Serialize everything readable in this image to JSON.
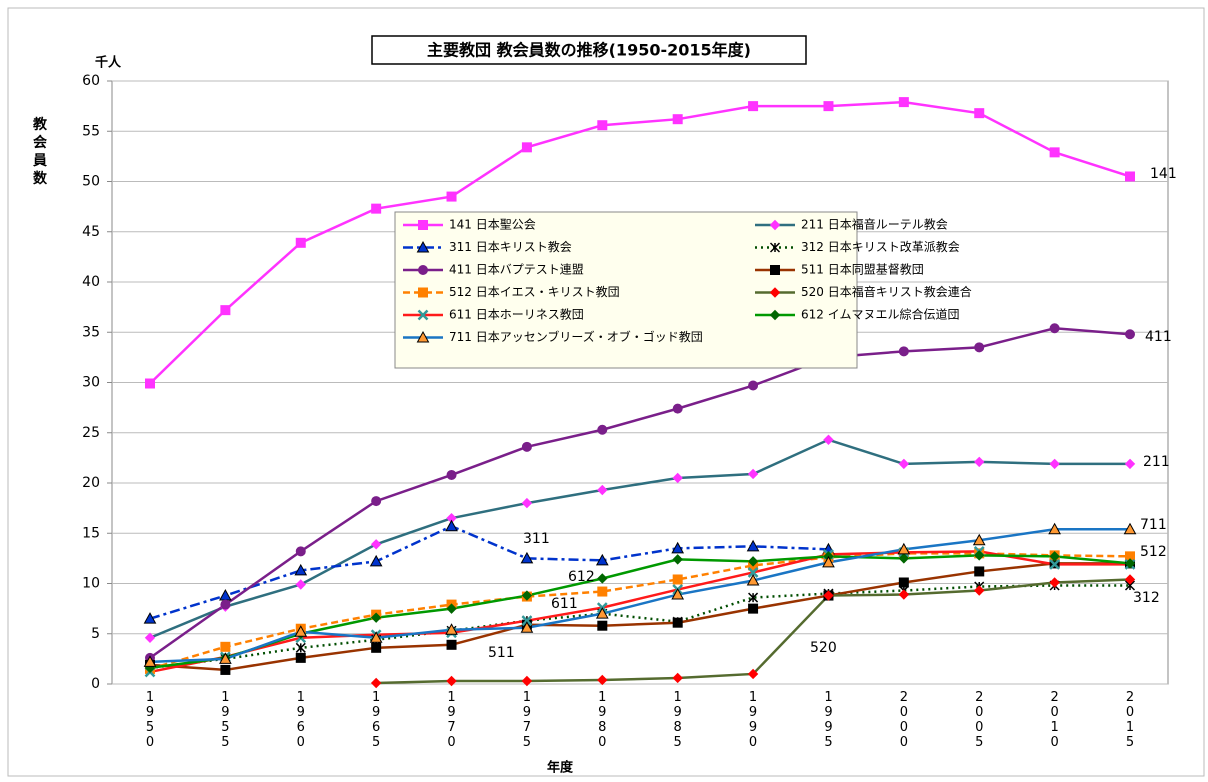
{
  "chart_data": {
    "type": "line",
    "title": "主要教団 教会員数の推移(1950-2015年度)",
    "y_unit": "千人",
    "y_label": "教会員数",
    "x_label": "年度",
    "categories": [
      "1950",
      "1955",
      "1960",
      "1965",
      "1970",
      "1975",
      "1980",
      "1985",
      "1990",
      "1995",
      "2000",
      "2005",
      "2010",
      "2015"
    ],
    "ylim": [
      0,
      60
    ],
    "yticks": [
      0,
      5,
      10,
      15,
      20,
      25,
      30,
      35,
      40,
      45,
      50,
      55,
      60
    ],
    "grid": true,
    "series": [
      {
        "name": "141 日本聖公会",
        "color": "#ff33ff",
        "marker": "square",
        "marker_color": "#ff33ff",
        "dash": "solid",
        "values": [
          29.9,
          37.2,
          43.9,
          47.3,
          48.5,
          53.4,
          55.6,
          56.2,
          57.5,
          57.5,
          57.9,
          56.8,
          52.9,
          50.5
        ]
      },
      {
        "name": "211 日本福音ルーテル教会",
        "color": "#2f6f7f",
        "marker": "diamond",
        "marker_color": "#ff33ff",
        "dash": "solid",
        "values": [
          4.6,
          7.7,
          9.9,
          13.9,
          16.5,
          18.0,
          19.3,
          20.5,
          20.9,
          24.3,
          21.9,
          22.1,
          21.9,
          21.9
        ]
      },
      {
        "name": "311 日本キリスト教会",
        "color": "#0033cc",
        "marker": "triangle",
        "marker_color": "#0033cc",
        "dash": "dashdot",
        "values": [
          6.5,
          8.8,
          11.3,
          12.2,
          15.7,
          12.5,
          12.3,
          13.5,
          13.7,
          13.4,
          null,
          null,
          null,
          null
        ]
      },
      {
        "name": "312 日本キリスト改革派教会",
        "color": "#004d00",
        "marker": "star",
        "marker_color": "#000000",
        "dash": "dot",
        "values": [
          1.6,
          2.5,
          3.6,
          4.4,
          5.3,
          6.3,
          7.0,
          6.2,
          8.6,
          9.0,
          9.3,
          9.7,
          9.8,
          9.8
        ]
      },
      {
        "name": "411 日本バプテスト連盟",
        "color": "#7a1f8a",
        "marker": "circle",
        "marker_color": "#7a1f8a",
        "dash": "solid",
        "values": [
          2.6,
          7.9,
          13.2,
          18.2,
          20.8,
          23.6,
          25.3,
          27.4,
          29.7,
          32.5,
          33.1,
          33.5,
          35.4,
          34.8
        ]
      },
      {
        "name": "511 日本同盟基督教団",
        "color": "#993300",
        "marker": "square",
        "marker_color": "#000000",
        "dash": "solid",
        "values": [
          1.9,
          1.4,
          2.6,
          3.6,
          3.9,
          5.9,
          5.8,
          6.1,
          7.5,
          8.8,
          10.1,
          11.2,
          12.0,
          12.0
        ]
      },
      {
        "name": "512 日本イエス・キリスト教団",
        "color": "#ff8000",
        "marker": "square",
        "marker_color": "#ff8000",
        "dash": "dash",
        "values": [
          1.5,
          3.7,
          5.5,
          6.9,
          7.9,
          8.7,
          9.2,
          10.4,
          11.8,
          12.6,
          13.0,
          13.0,
          12.8,
          12.7
        ]
      },
      {
        "name": "520 日本福音キリスト教会連合",
        "color": "#556b2f",
        "marker": "diamond",
        "marker_color": "#ff0000",
        "dash": "solid",
        "values": [
          null,
          null,
          null,
          0.1,
          0.3,
          0.3,
          0.4,
          0.6,
          1.0,
          8.8,
          8.9,
          9.3,
          10.1,
          10.4
        ]
      },
      {
        "name": "611 日本ホーリネス教団",
        "color": "#ff1a1a",
        "marker": "x",
        "marker_color": "#339999",
        "dash": "solid",
        "values": [
          1.2,
          2.7,
          4.6,
          4.9,
          5.1,
          6.3,
          7.6,
          9.4,
          11.1,
          12.9,
          13.1,
          13.2,
          11.9,
          11.9
        ]
      },
      {
        "name": "612 イムマヌエル綜合伝道団",
        "color": "#009900",
        "marker": "diamond",
        "marker_color": "#006600",
        "dash": "solid",
        "values": [
          1.6,
          2.6,
          5.0,
          6.6,
          7.5,
          8.8,
          10.5,
          12.4,
          12.2,
          12.7,
          12.5,
          12.8,
          12.7,
          12.0
        ]
      },
      {
        "name": "711 日本アッセンブリーズ・オブ・ゴッド教団",
        "color": "#1a75c4",
        "marker": "triangle",
        "marker_color": "#ff9933",
        "dash": "solid",
        "values": [
          2.2,
          2.5,
          5.2,
          4.6,
          5.4,
          5.6,
          7.0,
          8.9,
          10.3,
          12.1,
          13.4,
          14.3,
          15.4,
          15.4
        ]
      }
    ],
    "annotations": [
      "141",
      "411",
      "211",
      "711",
      "512",
      "312",
      "311",
      "612",
      "611",
      "511",
      "520"
    ]
  }
}
